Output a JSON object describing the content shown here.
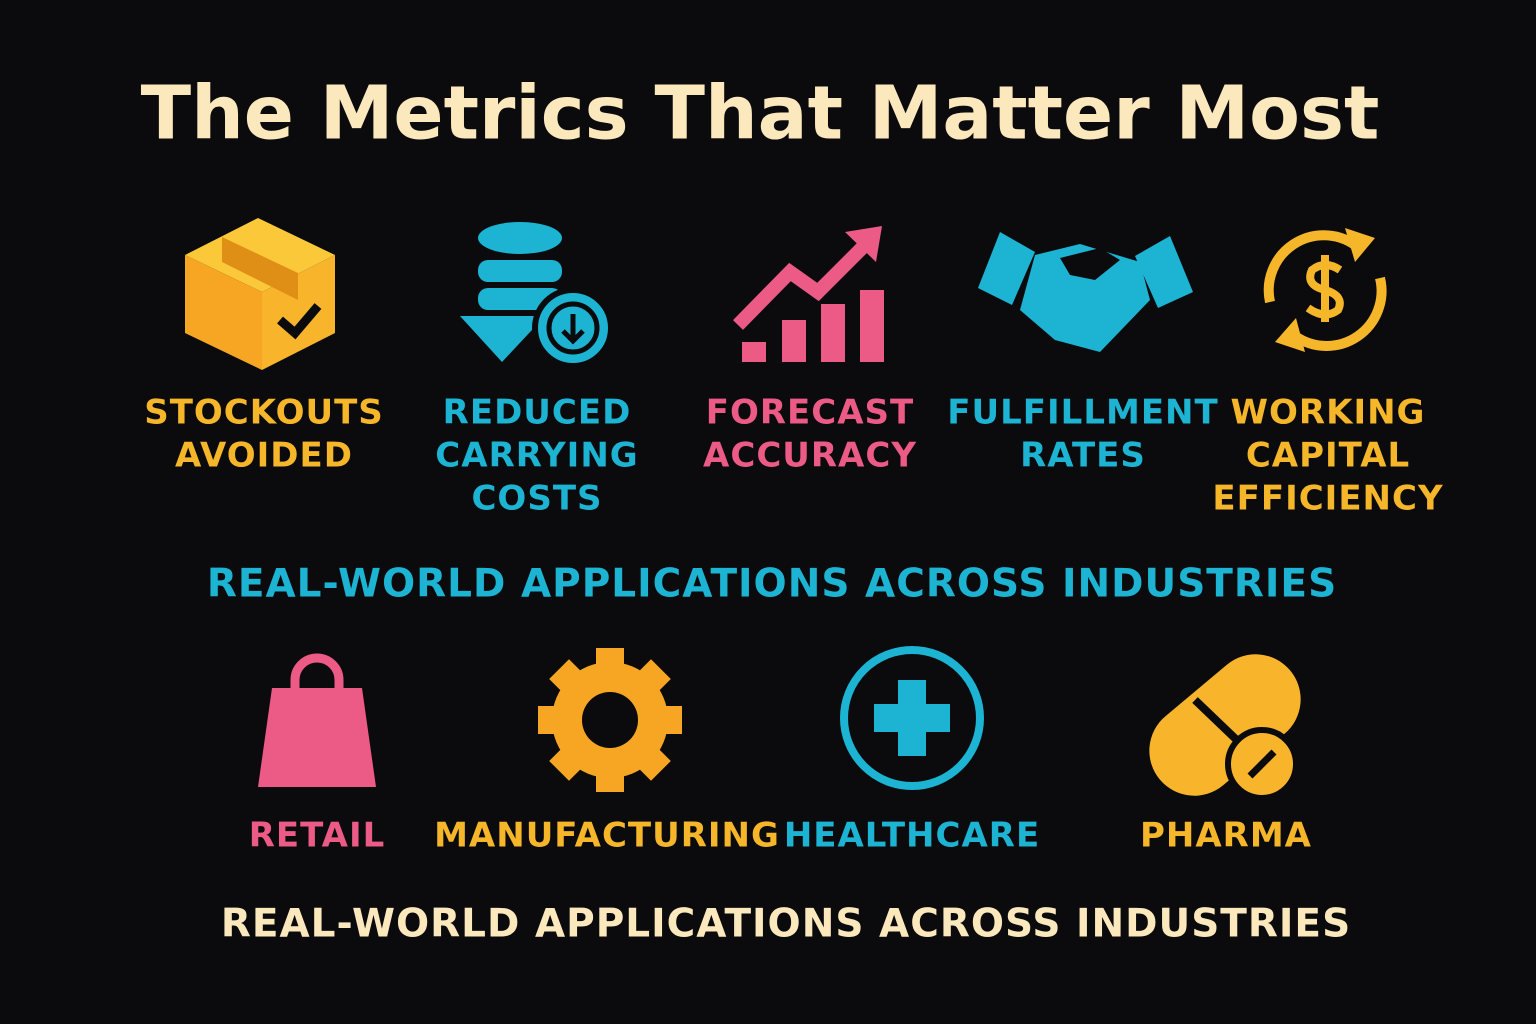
{
  "title": "The Metrics That Matter Most",
  "metrics": [
    {
      "label": [
        "STOCKOUTS",
        "AVOIDED"
      ]
    },
    {
      "label": [
        "REDUCED",
        "CARRYING",
        "COSTS"
      ]
    },
    {
      "label": [
        "FORECAST",
        "ACCURACY"
      ]
    },
    {
      "label": [
        "FULFILLMENT",
        "RATES"
      ]
    },
    {
      "label": [
        "WORKING",
        "CAPITAL",
        "EFFICIENCY"
      ]
    }
  ],
  "industries_heading": "REAL-WORLD APPLICATIONS ACROSS INDUSTRIES",
  "industries": [
    "RETAIL",
    "MANUFACTURING",
    "HEALTHCARE",
    "PHARMA"
  ],
  "footer": "REAL-WORLD APPLICATIONS ACROSS INDUSTRIES"
}
